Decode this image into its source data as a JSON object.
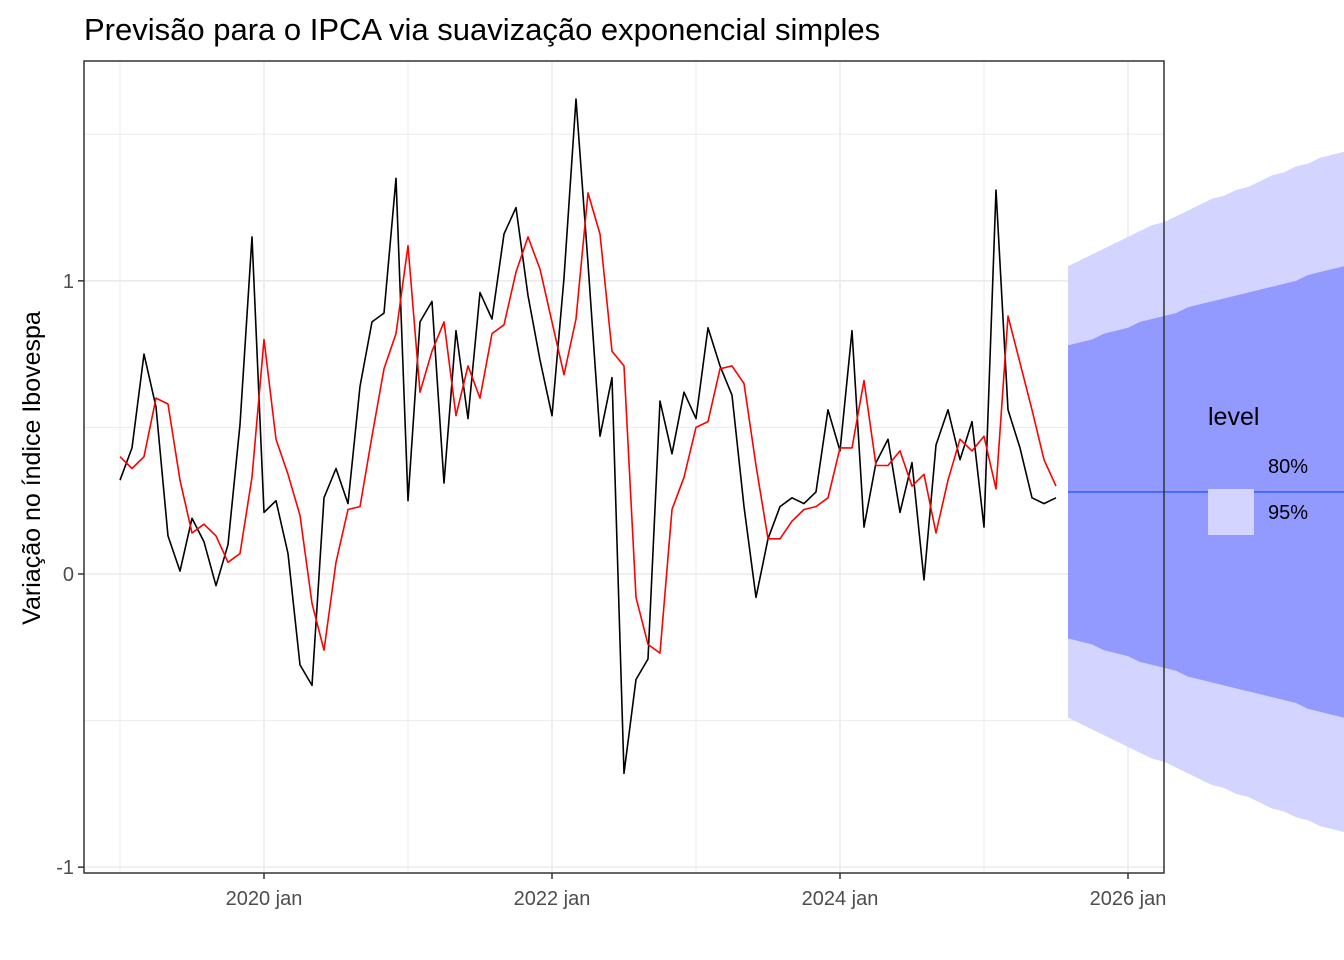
{
  "chart_data": {
    "type": "line",
    "title": "Previsão para o IPCA via suavização exponencial simples",
    "xlabel": "",
    "ylabel": "Variação no índice Ibovespa",
    "x_ticks": [
      "2020 jan",
      "2022 jan",
      "2024 jan",
      "2026 jan"
    ],
    "y_ticks": [
      "-1",
      "0",
      "1"
    ],
    "xlim": [
      "2018-10",
      "2026-04"
    ],
    "ylim": [
      -1.02,
      1.75
    ],
    "grid": true,
    "legend": {
      "position": "right",
      "title": "level",
      "entries": [
        {
          "label": "80%",
          "color": "#9299ff"
        },
        {
          "label": "95%",
          "color": "#d3d4ff"
        }
      ]
    },
    "x_start": "2019-01",
    "series": [
      {
        "color": "#000000",
        "values": [
          0.32,
          0.43,
          0.75,
          0.57,
          0.13,
          0.01,
          0.19,
          0.11,
          -0.04,
          0.1,
          0.51,
          1.15,
          0.21,
          0.25,
          0.07,
          -0.31,
          -0.38,
          0.26,
          0.36,
          0.24,
          0.64,
          0.86,
          0.89,
          1.35,
          0.25,
          0.86,
          0.93,
          0.31,
          0.83,
          0.53,
          0.96,
          0.87,
          1.16,
          1.25,
          0.95,
          0.73,
          0.54,
          1.01,
          1.62,
          1.06,
          0.47,
          0.67,
          -0.68,
          -0.36,
          -0.29,
          0.59,
          0.41,
          0.62,
          0.53,
          0.84,
          0.71,
          0.61,
          0.23,
          -0.08,
          0.12,
          0.23,
          0.26,
          0.24,
          0.28,
          0.56,
          0.42,
          0.83,
          0.16,
          0.38,
          0.46,
          0.21,
          0.38,
          -0.02,
          0.44,
          0.56,
          0.39,
          0.52,
          0.16,
          1.31,
          0.56,
          0.43,
          0.26,
          0.24,
          0.26
        ]
      },
      {
        "color": "#ff0000",
        "values": [
          0.4,
          0.36,
          0.4,
          0.6,
          0.58,
          0.32,
          0.14,
          0.17,
          0.13,
          0.04,
          0.07,
          0.33,
          0.8,
          0.46,
          0.34,
          0.2,
          -0.1,
          -0.26,
          0.04,
          0.22,
          0.23,
          0.47,
          0.7,
          0.82,
          1.12,
          0.62,
          0.76,
          0.86,
          0.54,
          0.71,
          0.6,
          0.82,
          0.85,
          1.03,
          1.15,
          1.04,
          0.86,
          0.68,
          0.87,
          1.3,
          1.16,
          0.76,
          0.71,
          -0.08,
          -0.24,
          -0.27,
          0.22,
          0.33,
          0.5,
          0.52,
          0.7,
          0.71,
          0.65,
          0.37,
          0.12,
          0.12,
          0.18,
          0.22,
          0.23,
          0.26,
          0.43,
          0.43,
          0.66,
          0.37,
          0.37,
          0.42,
          0.3,
          0.34,
          0.14,
          0.32,
          0.46,
          0.42,
          0.47,
          0.29,
          0.88,
          0.72,
          0.56,
          0.39,
          0.3
        ]
      },
      {
        "color": "#3366ff",
        "x_start": "2025-08",
        "values": [
          0.28,
          0.28,
          0.28,
          0.28,
          0.28,
          0.28,
          0.28,
          0.28,
          0.28,
          0.28,
          0.28,
          0.28,
          0.28,
          0.28,
          0.28,
          0.28,
          0.28,
          0.28,
          0.28,
          0.28,
          0.28,
          0.28,
          0.28,
          0.28
        ],
        "lo80": [
          -0.22,
          -0.23,
          -0.24,
          -0.26,
          -0.27,
          -0.28,
          -0.3,
          -0.31,
          -0.32,
          -0.33,
          -0.35,
          -0.36,
          -0.37,
          -0.38,
          -0.39,
          -0.4,
          -0.41,
          -0.42,
          -0.43,
          -0.44,
          -0.46,
          -0.47,
          -0.48,
          -0.49
        ],
        "hi80": [
          0.78,
          0.79,
          0.8,
          0.82,
          0.83,
          0.84,
          0.86,
          0.87,
          0.88,
          0.89,
          0.91,
          0.92,
          0.93,
          0.94,
          0.95,
          0.96,
          0.97,
          0.98,
          0.99,
          1.0,
          1.02,
          1.03,
          1.04,
          1.05
        ],
        "lo95": [
          -0.49,
          -0.51,
          -0.53,
          -0.55,
          -0.57,
          -0.59,
          -0.61,
          -0.63,
          -0.64,
          -0.66,
          -0.68,
          -0.7,
          -0.72,
          -0.73,
          -0.75,
          -0.76,
          -0.78,
          -0.8,
          -0.81,
          -0.83,
          -0.84,
          -0.86,
          -0.87,
          -0.88
        ],
        "hi95": [
          1.05,
          1.07,
          1.09,
          1.11,
          1.13,
          1.15,
          1.17,
          1.19,
          1.2,
          1.22,
          1.24,
          1.26,
          1.28,
          1.29,
          1.31,
          1.32,
          1.34,
          1.36,
          1.37,
          1.39,
          1.4,
          1.42,
          1.43,
          1.44
        ]
      }
    ]
  }
}
